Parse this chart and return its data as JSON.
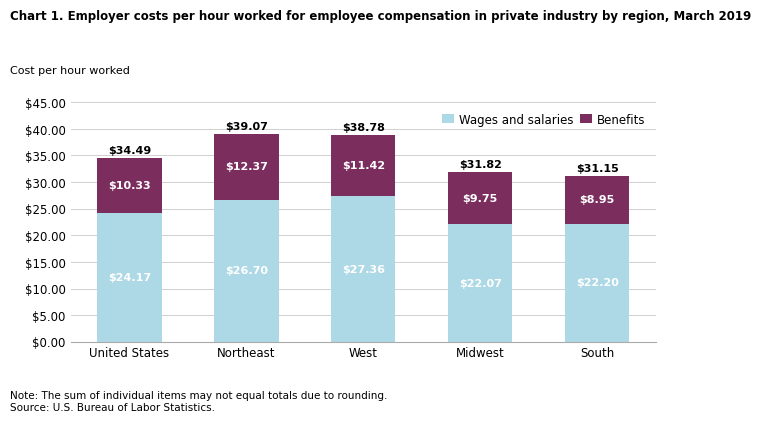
{
  "title": "Chart 1. Employer costs per hour worked for employee compensation in private industry by region, March 2019",
  "ylabel": "Cost per hour worked",
  "categories": [
    "United States",
    "Northeast",
    "West",
    "Midwest",
    "South"
  ],
  "wages": [
    24.17,
    26.7,
    27.36,
    22.07,
    22.2
  ],
  "benefits": [
    10.33,
    12.37,
    11.42,
    9.75,
    8.95
  ],
  "totals": [
    34.49,
    39.07,
    38.78,
    31.82,
    31.15
  ],
  "wages_color": "#add8e6",
  "benefits_color": "#7b2d5e",
  "ylim": [
    0,
    45
  ],
  "yticks": [
    0,
    5,
    10,
    15,
    20,
    25,
    30,
    35,
    40,
    45
  ],
  "legend_labels": [
    "Wages and salaries",
    "Benefits"
  ],
  "note": "Note: The sum of individual items may not equal totals due to rounding.\nSource: U.S. Bureau of Labor Statistics.",
  "background_color": "#ffffff",
  "grid_color": "#d0d0d0"
}
